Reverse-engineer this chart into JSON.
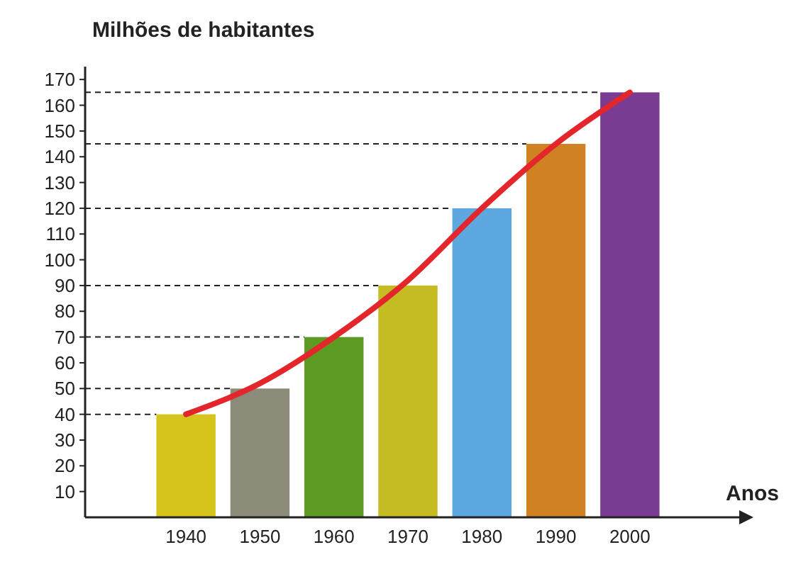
{
  "chart_data": {
    "type": "bar",
    "ylabel": "Milhões de habitantes",
    "xlabel": "Anos",
    "categories": [
      "1940",
      "1950",
      "1960",
      "1970",
      "1980",
      "1990",
      "2000"
    ],
    "series": [
      {
        "values": [
          40,
          50,
          70,
          90,
          120,
          145,
          165
        ],
        "colors": [
          "#d4c41c",
          "#8c8a78",
          "#5c9a22",
          "#c4bc22",
          "#5ea8e0",
          "#d08222",
          "#7a3c92"
        ]
      },
      {
        "type": "line",
        "color": "#e3262b",
        "values": [
          40,
          52,
          70,
          92,
          120,
          145,
          165
        ]
      }
    ],
    "ylim": [
      0,
      175
    ],
    "yticks": [
      10,
      20,
      30,
      40,
      50,
      60,
      70,
      80,
      90,
      100,
      110,
      120,
      130,
      140,
      150,
      160,
      170
    ],
    "ref_lines": [
      {
        "axis": "y",
        "value": 40
      },
      {
        "axis": "y",
        "value": 50
      },
      {
        "axis": "y",
        "value": 70
      },
      {
        "axis": "y",
        "value": 90
      },
      {
        "axis": "y",
        "value": 120
      },
      {
        "axis": "y",
        "value": 145
      },
      {
        "axis": "y",
        "value": 165
      }
    ],
    "grid": false
  }
}
